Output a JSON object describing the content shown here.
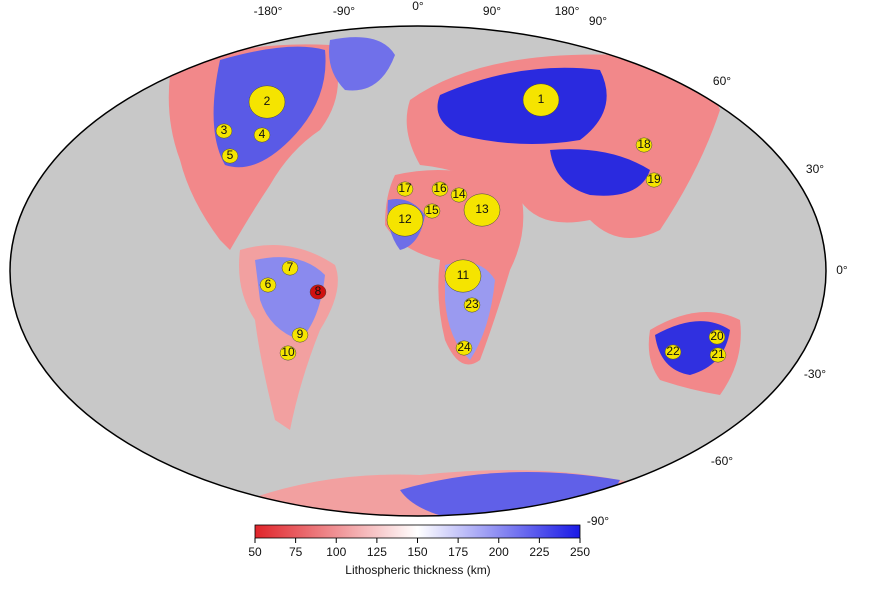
{
  "map": {
    "lon_labels": [
      "-180°",
      "-90°",
      "0°",
      "90°",
      "180°",
      "90°"
    ],
    "lat_labels": [
      "60°",
      "30°",
      "0°",
      "-30°",
      "-60°",
      "-90°"
    ],
    "regions": [
      "1",
      "2",
      "3",
      "4",
      "5",
      "6",
      "7",
      "8",
      "9",
      "10",
      "11",
      "12",
      "13",
      "14",
      "15",
      "16",
      "17",
      "18",
      "19",
      "20",
      "21",
      "22",
      "23",
      "24"
    ]
  },
  "colorbar": {
    "label": "Lithospheric thickness (km)",
    "lim": [
      50,
      250
    ],
    "ticks": [
      50,
      75,
      100,
      125,
      150,
      175,
      200,
      225,
      250
    ],
    "colors": [
      "#e0242a",
      "#ffffff",
      "#1a1ae6"
    ]
  }
}
